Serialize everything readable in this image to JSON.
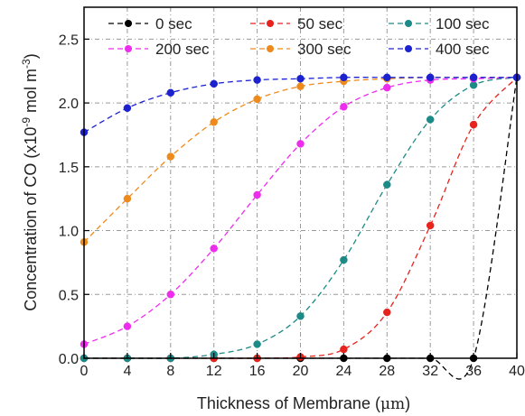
{
  "chart_data": {
    "type": "line",
    "xlabel_prefix": "Thickness of Membrane (",
    "xlabel_unit": "μm",
    "xlabel_suffix": ")",
    "ylabel_prefix": "Concentration of CO (x10",
    "ylabel_exp1": "-9",
    "ylabel_mid": " mol m",
    "ylabel_exp2": "-3",
    "ylabel_suffix": ")",
    "xlim": [
      0,
      40
    ],
    "ylim": [
      0,
      2.75
    ],
    "x_ticks": [
      "0",
      "4",
      "8",
      "12",
      "16",
      "20",
      "24",
      "28",
      "32",
      "36",
      "40"
    ],
    "y_ticks": [
      "0.0",
      "0.5",
      "1.0",
      "1.5",
      "2.0",
      "2.5"
    ],
    "grid": true,
    "legend_position": "top",
    "x": [
      0,
      4,
      8,
      12,
      16,
      20,
      24,
      28,
      32,
      36,
      40
    ],
    "series": [
      {
        "name": "0 sec",
        "color": "#000000",
        "values": [
          0,
          0,
          0,
          0,
          0,
          0,
          0,
          0,
          0,
          0,
          2.2
        ]
      },
      {
        "name": "50 sec",
        "color": "#e8221c",
        "values": [
          0,
          0,
          0,
          0,
          0,
          0.01,
          0.07,
          0.36,
          1.04,
          1.83,
          2.2
        ]
      },
      {
        "name": "100 sec",
        "color": "#1c8a87",
        "values": [
          0,
          0,
          0,
          0.03,
          0.11,
          0.33,
          0.77,
          1.36,
          1.87,
          2.14,
          2.2
        ]
      },
      {
        "name": "200 sec",
        "color": "#ee2cee",
        "values": [
          0.11,
          0.25,
          0.5,
          0.86,
          1.28,
          1.68,
          1.97,
          2.12,
          2.18,
          2.19,
          2.2
        ]
      },
      {
        "name": "300 sec",
        "color": "#ee8a1c",
        "values": [
          0.91,
          1.25,
          1.58,
          1.85,
          2.03,
          2.13,
          2.17,
          2.19,
          2.2,
          2.2,
          2.2
        ]
      },
      {
        "name": "400 sec",
        "color": "#1c22d0",
        "values": [
          1.77,
          1.96,
          2.08,
          2.15,
          2.18,
          2.19,
          2.2,
          2.2,
          2.2,
          2.2,
          2.2
        ]
      }
    ]
  }
}
